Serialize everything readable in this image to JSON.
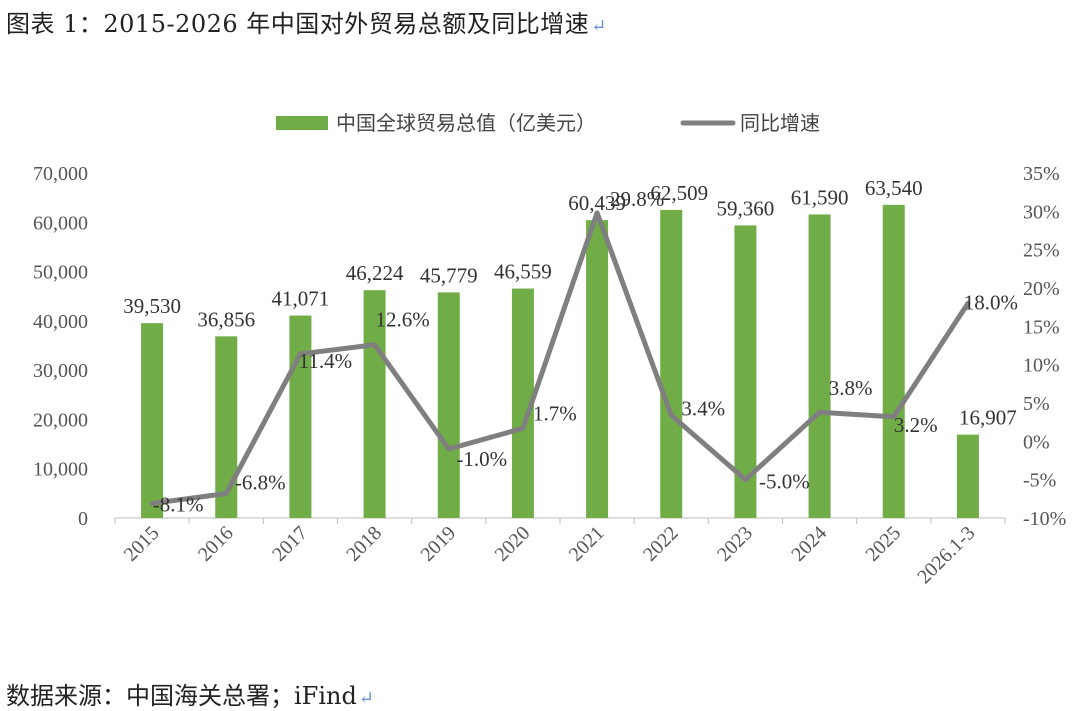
{
  "caption": "图表 1：2015-2026 年中国对外贸易总额及同比增速",
  "source": "数据来源：中国海关总署；iFind",
  "return_mark": "↵",
  "chart_data": {
    "type": "bar+line",
    "categories": [
      "2015",
      "2016",
      "2017",
      "2018",
      "2019",
      "2020",
      "2021",
      "2022",
      "2023",
      "2024",
      "2025",
      "2026.1-3"
    ],
    "series": [
      {
        "name": "中国全球贸易总值（亿美元）",
        "type": "bar",
        "axis": "left",
        "color": "#70ad47",
        "values": [
          39530,
          36856,
          41071,
          46224,
          45779,
          46559,
          60439,
          62509,
          59360,
          61590,
          63540,
          16907
        ],
        "labels": [
          "39,530",
          "36,856",
          "41,071",
          "46,224",
          "45,779",
          "46,559",
          "60,439",
          "62,509",
          "59,360",
          "61,590",
          "63,540",
          "16,907"
        ]
      },
      {
        "name": "同比增速",
        "type": "line",
        "axis": "right",
        "color": "#7f7f7f",
        "values": [
          -8.1,
          -6.8,
          11.4,
          12.6,
          -1.0,
          1.7,
          29.8,
          3.4,
          -5.0,
          3.8,
          3.2,
          18.0
        ],
        "labels": [
          "-8.1%",
          "-6.8%",
          "11.4%",
          "12.6%",
          "-1.0%",
          "1.7%",
          "29.8%",
          "3.4%",
          "-5.0%",
          "3.8%",
          "3.2%",
          "18.0%"
        ]
      }
    ],
    "yaxis_left": {
      "min": 0,
      "max": 70000,
      "step": 10000,
      "tick_labels": [
        "0",
        "10,000",
        "20,000",
        "30,000",
        "40,000",
        "50,000",
        "60,000",
        "70,000"
      ]
    },
    "yaxis_right": {
      "min": -10,
      "max": 35,
      "step": 5,
      "tick_labels": [
        "-10%",
        "-5%",
        "0%",
        "5%",
        "10%",
        "15%",
        "20%",
        "25%",
        "30%",
        "35%"
      ]
    },
    "grid": false,
    "legend_position": "top"
  }
}
